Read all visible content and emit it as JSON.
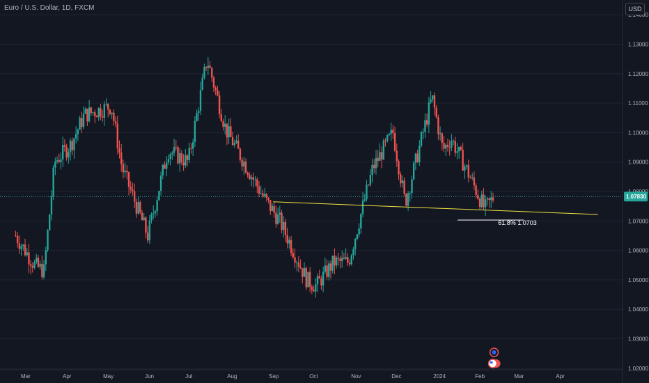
{
  "symbol_title": "Euro / U.S. Dollar, 1D, FXCM",
  "currency_badge": "USD",
  "colors": {
    "background": "#131722",
    "up": "#26a69a",
    "down": "#ef5350",
    "trendline": "#f0e442",
    "fib_line": "#ffffff",
    "grid": "#1f2430",
    "axis_text": "#b2b5be",
    "price_tag": "#26a69a"
  },
  "current_price": {
    "value": 1.0783,
    "label": "1.07830"
  },
  "fib_label": {
    "text": "61.8%  1.0703",
    "value": 1.0703
  },
  "events_icons": [
    "clock-event-icon",
    "us-flag-event-icon",
    "eu-flag-event-icon"
  ],
  "chart_data": {
    "type": "candlestick",
    "title": "Euro / U.S. Dollar, 1D, FXCM",
    "ylim": [
      1.015,
      1.145
    ],
    "y_ticks": [
      "1.14000",
      "1.13000",
      "1.12000",
      "1.11000",
      "1.10000",
      "1.09000",
      "1.08000",
      "1.07000",
      "1.06000",
      "1.05000",
      "1.04000",
      "1.03000",
      "1.02000"
    ],
    "x_ticks": [
      "Mar",
      "Apr",
      "May",
      "Jun",
      "Jul",
      "Aug",
      "Sep",
      "Oct",
      "Nov",
      "Dec",
      "2024",
      "Feb",
      "Mar",
      "Apr"
    ],
    "price_path": [
      [
        "2023-02-22",
        1.065
      ],
      [
        "2023-03-08",
        1.055
      ],
      [
        "2023-03-15",
        1.053
      ],
      [
        "2023-03-23",
        1.09
      ],
      [
        "2023-04-04",
        1.096
      ],
      [
        "2023-04-14",
        1.106
      ],
      [
        "2023-05-04",
        1.109
      ],
      [
        "2023-05-12",
        1.088
      ],
      [
        "2023-05-31",
        1.065
      ],
      [
        "2023-06-15",
        1.094
      ],
      [
        "2023-06-30",
        1.09
      ],
      [
        "2023-07-14",
        1.125
      ],
      [
        "2023-07-28",
        1.101
      ],
      [
        "2023-08-25",
        1.078
      ],
      [
        "2023-09-06",
        1.07
      ],
      [
        "2023-09-26",
        1.05
      ],
      [
        "2023-10-03",
        1.048
      ],
      [
        "2023-10-16",
        1.056
      ],
      [
        "2023-10-27",
        1.056
      ],
      [
        "2023-11-14",
        1.088
      ],
      [
        "2023-11-29",
        1.1
      ],
      [
        "2023-12-08",
        1.076
      ],
      [
        "2023-12-28",
        1.112
      ],
      [
        "2024-01-05",
        1.094
      ],
      [
        "2024-01-11",
        1.098
      ],
      [
        "2024-01-22",
        1.088
      ],
      [
        "2024-02-05",
        1.074
      ],
      [
        "2024-02-12",
        1.0783
      ]
    ],
    "trendline": [
      [
        "2023-09-01",
        1.0765
      ],
      [
        "2024-04-29",
        1.0722
      ]
    ],
    "fib_level": {
      "label": "61.8%",
      "value": 1.0703
    }
  }
}
